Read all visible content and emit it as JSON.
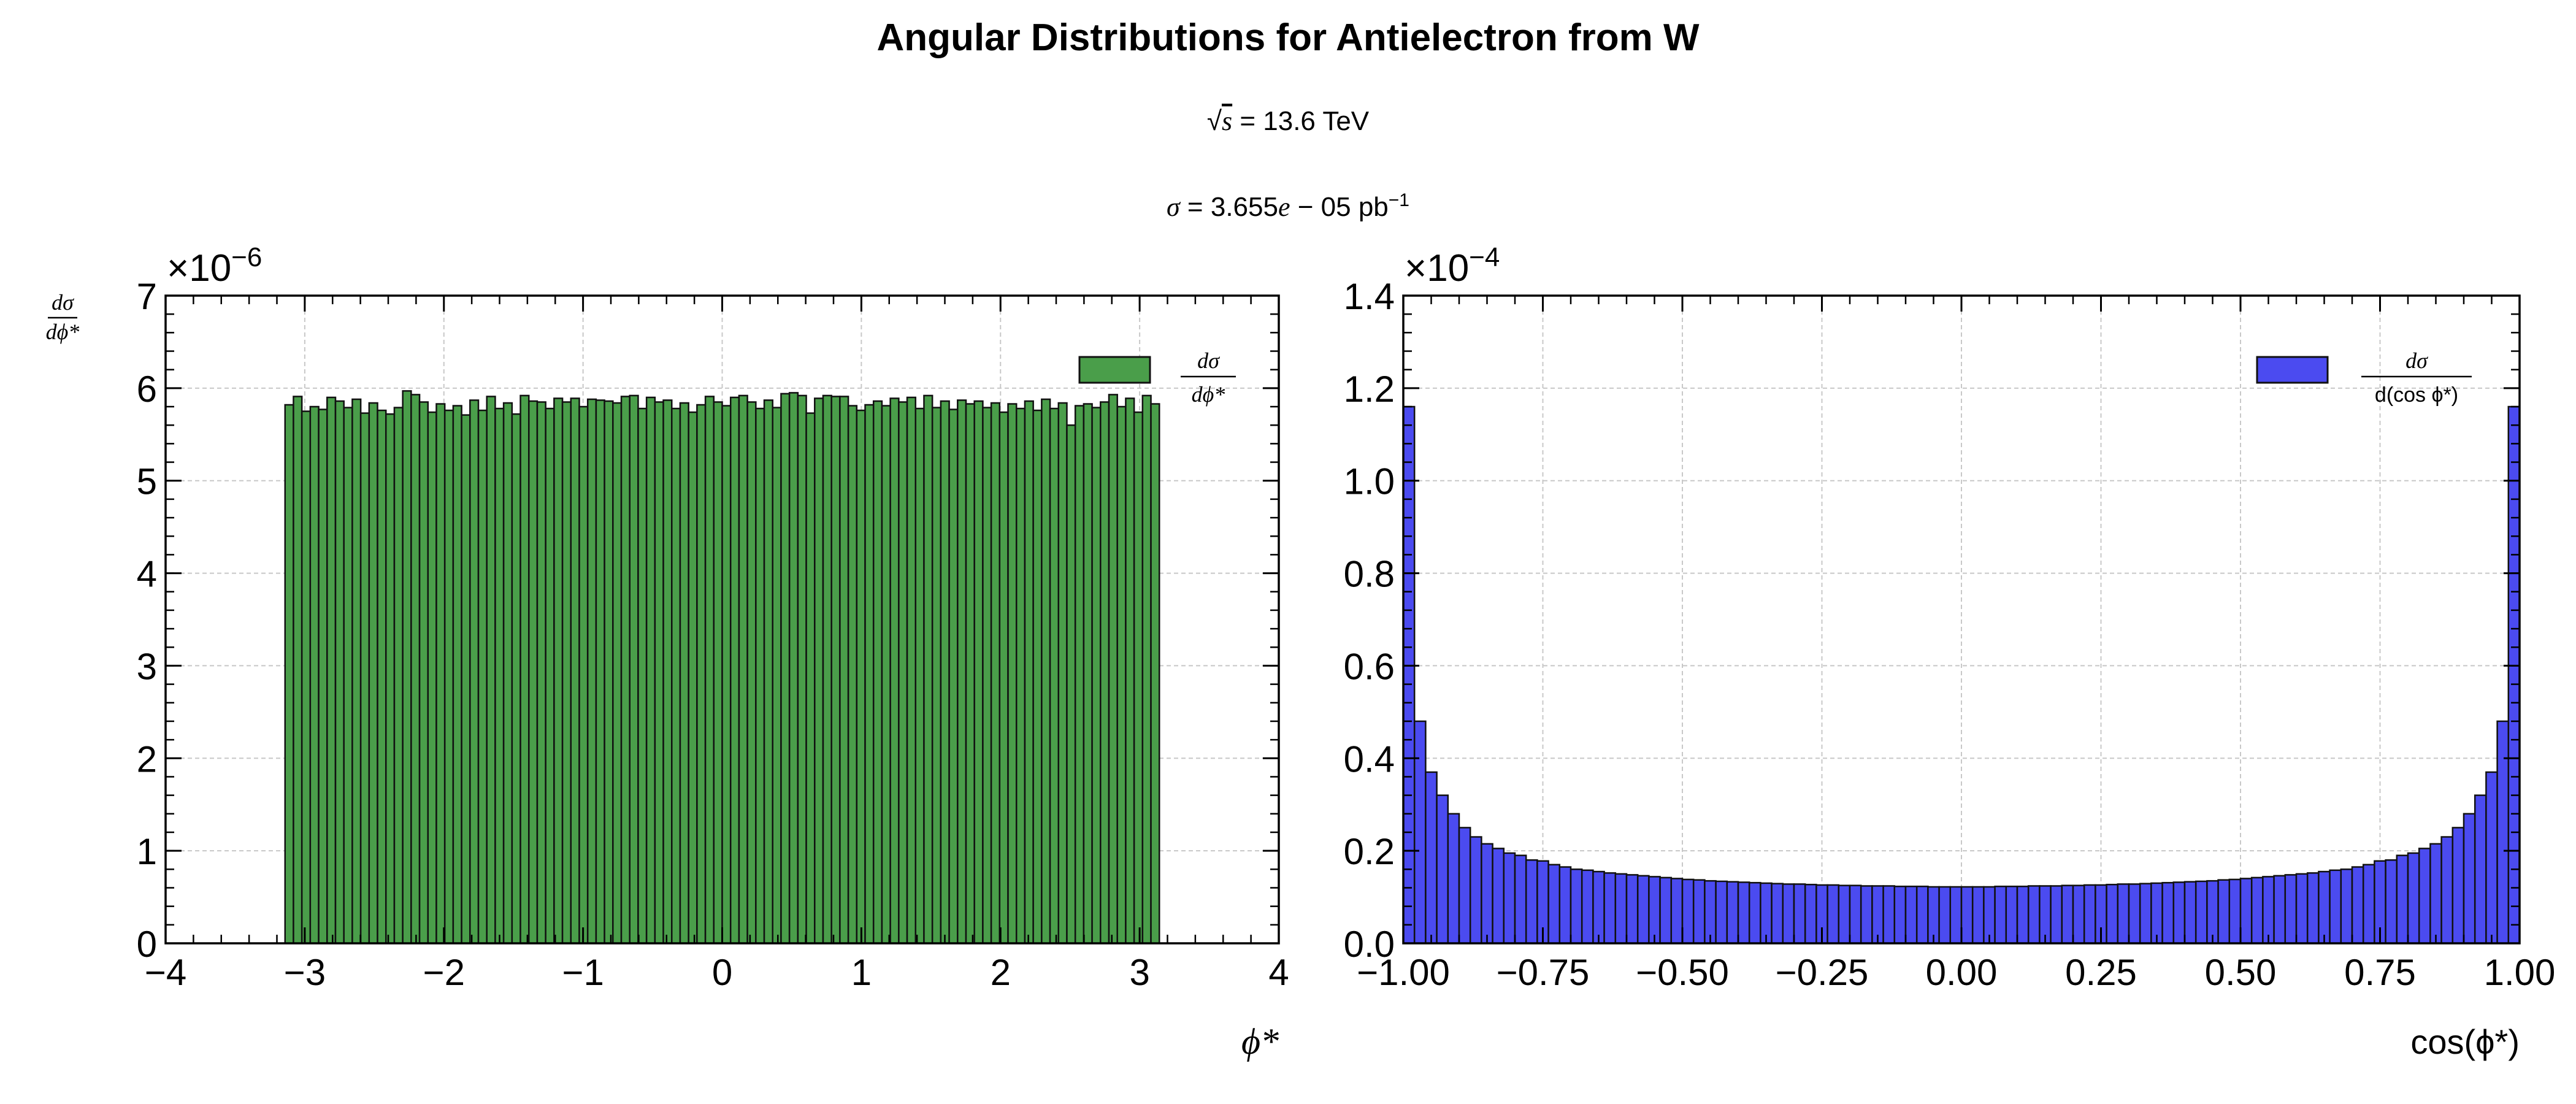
{
  "figure": {
    "title": "Angular Distributions for Antielectron from W",
    "energy_label": {
      "root": "√",
      "var": "s",
      "rest": " = 13.6 TeV"
    },
    "xsec_label": {
      "sym": "σ",
      "value": " = 3.655",
      "e": "e",
      "exp": " − 05",
      "unit": " pb",
      "sup": "−1"
    }
  },
  "colors": {
    "left_fill": "#4a9e4a",
    "right_fill": "#4b4bf0",
    "edge": "#111111",
    "grid": "#c8c8c8"
  },
  "chart_data": [
    {
      "type": "bar",
      "name": "phi",
      "title": "",
      "ylabel": {
        "num": "dσ",
        "den": "dϕ*"
      },
      "xlabel": "ϕ*",
      "multiplier": "×10",
      "multiplier_exp": "−6",
      "xlim": [
        -4,
        4
      ],
      "ylim": [
        0,
        7
      ],
      "xticks": [
        -4,
        -3,
        -2,
        -1,
        0,
        1,
        2,
        3,
        4
      ],
      "xtick_labels": [
        "−4",
        "−3",
        "−2",
        "−1",
        "0",
        "1",
        "2",
        "3",
        "4"
      ],
      "yticks": [
        0,
        1,
        2,
        3,
        4,
        5,
        6,
        7
      ],
      "ytick_labels": [
        "0",
        "1",
        "2",
        "3",
        "4",
        "5",
        "6",
        "7"
      ],
      "grid": true,
      "legend": {
        "position": "top-right",
        "label_num": "dσ",
        "label_den": "dϕ*"
      },
      "bin_range": [
        -3.14159,
        3.14159
      ],
      "units": "1e-6",
      "values": [
        5.82,
        5.91,
        5.75,
        5.8,
        5.77,
        5.9,
        5.86,
        5.79,
        5.88,
        5.73,
        5.84,
        5.76,
        5.72,
        5.79,
        5.97,
        5.93,
        5.85,
        5.74,
        5.83,
        5.76,
        5.81,
        5.71,
        5.87,
        5.76,
        5.91,
        5.78,
        5.84,
        5.72,
        5.92,
        5.86,
        5.85,
        5.78,
        5.89,
        5.85,
        5.89,
        5.8,
        5.88,
        5.87,
        5.86,
        5.84,
        5.91,
        5.92,
        5.78,
        5.9,
        5.85,
        5.87,
        5.78,
        5.84,
        5.74,
        5.82,
        5.91,
        5.85,
        5.81,
        5.9,
        5.92,
        5.85,
        5.78,
        5.87,
        5.79,
        5.94,
        5.95,
        5.92,
        5.73,
        5.89,
        5.92,
        5.91,
        5.91,
        5.81,
        5.76,
        5.82,
        5.86,
        5.81,
        5.89,
        5.85,
        5.9,
        5.78,
        5.92,
        5.79,
        5.86,
        5.77,
        5.87,
        5.83,
        5.86,
        5.79,
        5.84,
        5.74,
        5.83,
        5.78,
        5.86,
        5.76,
        5.88,
        5.78,
        5.84,
        5.6,
        5.81,
        5.83,
        5.79,
        5.85,
        5.93,
        5.8,
        5.89,
        5.74,
        5.92,
        5.83
      ]
    },
    {
      "type": "bar",
      "name": "cos_phi",
      "title": "",
      "ylabel": "",
      "xlabel": "cos(ϕ*)",
      "multiplier": "×10",
      "multiplier_exp": "−4",
      "xlim": [
        -1,
        1
      ],
      "ylim": [
        0,
        1.4
      ],
      "xticks": [
        -1,
        -0.75,
        -0.5,
        -0.25,
        0,
        0.25,
        0.5,
        0.75,
        1
      ],
      "xtick_labels": [
        "−1.00",
        "−0.75",
        "−0.50",
        "−0.25",
        "0.00",
        "0.25",
        "0.50",
        "0.75",
        "1.00"
      ],
      "yticks": [
        0,
        0.2,
        0.4,
        0.6,
        0.8,
        1.0,
        1.2,
        1.4
      ],
      "ytick_labels": [
        "0.0",
        "0.2",
        "0.4",
        "0.6",
        "0.8",
        "1.0",
        "1.2",
        "1.4"
      ],
      "grid": true,
      "legend": {
        "position": "top-right",
        "label_num": "dσ",
        "label_den": "d(cos ϕ*)"
      },
      "bin_range": [
        -1,
        1
      ],
      "units": "1e-4",
      "values": [
        1.16,
        0.48,
        0.37,
        0.32,
        0.28,
        0.25,
        0.23,
        0.215,
        0.205,
        0.195,
        0.19,
        0.18,
        0.178,
        0.17,
        0.165,
        0.16,
        0.158,
        0.155,
        0.152,
        0.15,
        0.148,
        0.146,
        0.144,
        0.142,
        0.14,
        0.138,
        0.137,
        0.135,
        0.134,
        0.133,
        0.132,
        0.131,
        0.13,
        0.129,
        0.128,
        0.128,
        0.127,
        0.126,
        0.126,
        0.125,
        0.125,
        0.124,
        0.124,
        0.124,
        0.123,
        0.123,
        0.123,
        0.122,
        0.122,
        0.122,
        0.122,
        0.122,
        0.122,
        0.123,
        0.123,
        0.123,
        0.124,
        0.124,
        0.124,
        0.125,
        0.125,
        0.126,
        0.126,
        0.127,
        0.128,
        0.128,
        0.129,
        0.13,
        0.131,
        0.132,
        0.133,
        0.134,
        0.135,
        0.137,
        0.138,
        0.14,
        0.142,
        0.144,
        0.146,
        0.148,
        0.15,
        0.152,
        0.155,
        0.158,
        0.16,
        0.165,
        0.17,
        0.178,
        0.18,
        0.19,
        0.195,
        0.205,
        0.215,
        0.23,
        0.25,
        0.28,
        0.32,
        0.37,
        0.48,
        1.16
      ]
    }
  ]
}
